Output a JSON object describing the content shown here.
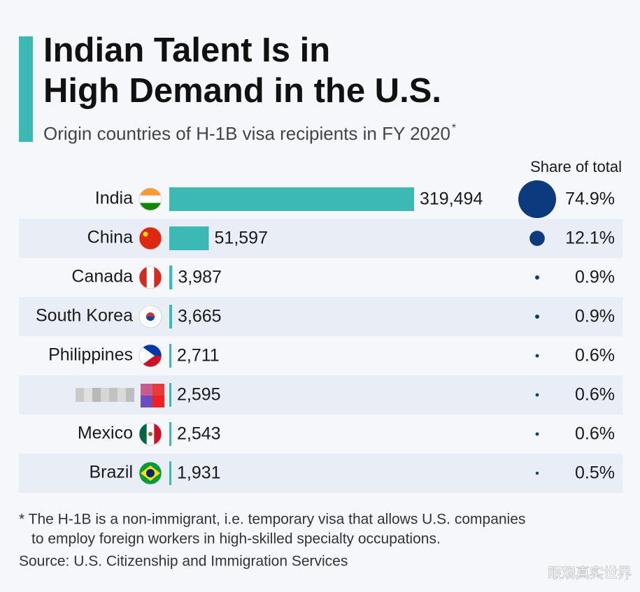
{
  "chart_data": {
    "type": "bar",
    "orientation": "horizontal",
    "title": [
      "Indian Talent Is in",
      "High Demand in the U.S."
    ],
    "subtitle": "Origin countries of H-1B visa recipients in FY 2020",
    "subtitle_note": "*",
    "categories": [
      "India",
      "China",
      "Canada",
      "South Korea",
      "Philippines",
      null,
      "Mexico",
      "Brazil"
    ],
    "values": [
      319494,
      51597,
      3987,
      3665,
      2711,
      2595,
      2543,
      1931
    ],
    "value_labels": [
      "319,494",
      "51,597",
      "3,987",
      "3,665",
      "2,711",
      "2,595",
      "2,543",
      "1,931"
    ],
    "color": "#3cb9b4",
    "share": {
      "name": "Share of total",
      "color": "#0b3b7e",
      "values": [
        74.9,
        12.1,
        0.9,
        0.9,
        0.6,
        0.6,
        0.6,
        0.5
      ],
      "value_labels": [
        "74.9%",
        "12.1%",
        "0.9%",
        "0.9%",
        "0.6%",
        "0.6%",
        "0.6%",
        "0.5%"
      ]
    },
    "footnote": [
      "* The H-1B is a non-immigrant, i.e. temporary visa that allows U.S. companies",
      "to employ foreign workers in high-skilled specialty occupations."
    ],
    "source": "Source: U.S. Citizenship and Immigration Services",
    "watermark": "眼观真实世界"
  }
}
